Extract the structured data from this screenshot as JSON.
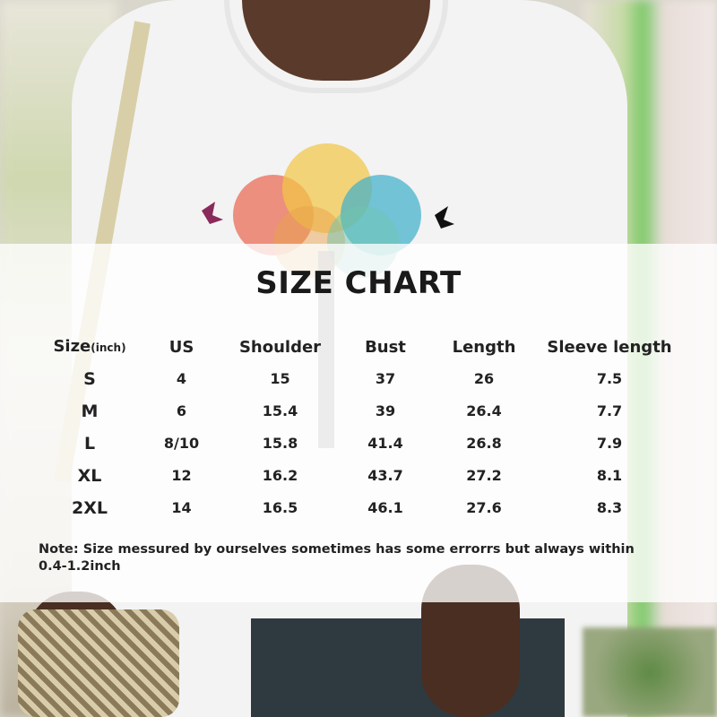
{
  "title": "SIZE CHART",
  "table": {
    "headers": {
      "size": "Size",
      "size_unit": "(inch)",
      "us": "US",
      "shoulder": "Shoulder",
      "bust": "Bust",
      "length": "Length",
      "sleeve": "Sleeve length"
    },
    "rows": [
      {
        "size": "S",
        "us": "4",
        "shoulder": "15",
        "bust": "37",
        "length": "26",
        "sleeve": "7.5"
      },
      {
        "size": "M",
        "us": "6",
        "shoulder": "15.4",
        "bust": "39",
        "length": "26.4",
        "sleeve": "7.7"
      },
      {
        "size": "L",
        "us": "8/10",
        "shoulder": "15.8",
        "bust": "41.4",
        "length": "26.8",
        "sleeve": "7.9"
      },
      {
        "size": "XL",
        "us": "12",
        "shoulder": "16.2",
        "bust": "43.7",
        "length": "27.2",
        "sleeve": "8.1"
      },
      {
        "size": "2XL",
        "us": "14",
        "shoulder": "16.5",
        "bust": "46.1",
        "length": "27.6",
        "sleeve": "8.3"
      }
    ]
  },
  "note": "Note:  Size messured by ourselves sometimes has some errorrs but always within 0.4-1.2inch",
  "colors": {
    "overlay": "#ffffff",
    "text": "#222222"
  }
}
